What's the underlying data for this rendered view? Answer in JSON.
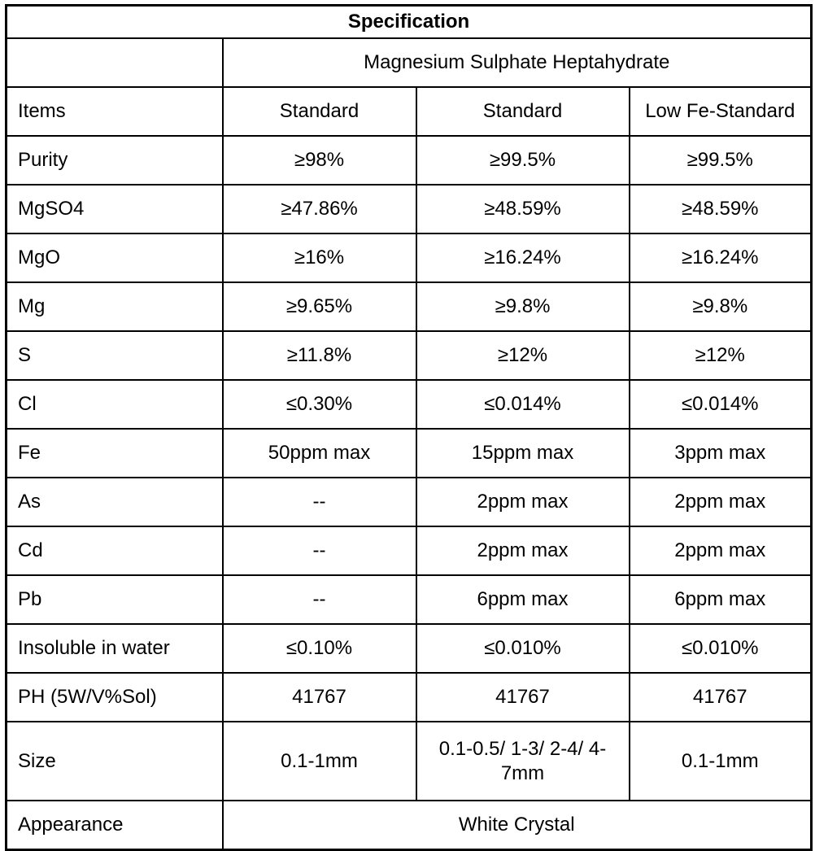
{
  "table": {
    "title": "Specification",
    "product_name": "Magnesium Sulphate Heptahydrate",
    "header": {
      "item_col": "Items",
      "grades": [
        "Standard",
        "Standard",
        "Low Fe-Standard"
      ]
    },
    "rows": [
      {
        "item": "Purity",
        "values": [
          "≥98%",
          "≥99.5%",
          "≥99.5%"
        ]
      },
      {
        "item": "MgSO4",
        "values": [
          "≥47.86%",
          "≥48.59%",
          "≥48.59%"
        ]
      },
      {
        "item": "MgO",
        "values": [
          "≥16%",
          "≥16.24%",
          "≥16.24%"
        ]
      },
      {
        "item": "Mg",
        "values": [
          "≥9.65%",
          "≥9.8%",
          "≥9.8%"
        ]
      },
      {
        "item": "S",
        "values": [
          "≥11.8%",
          "≥12%",
          "≥12%"
        ]
      },
      {
        "item": "Cl",
        "values": [
          "≤0.30%",
          "≤0.014%",
          "≤0.014%"
        ]
      },
      {
        "item": "Fe",
        "values": [
          "50ppm max",
          "15ppm max",
          "3ppm max"
        ]
      },
      {
        "item": "As",
        "values": [
          "--",
          "2ppm max",
          "2ppm max"
        ]
      },
      {
        "item": "Cd",
        "values": [
          "--",
          "2ppm max",
          "2ppm max"
        ]
      },
      {
        "item": "Pb",
        "values": [
          "--",
          "6ppm max",
          "6ppm max"
        ]
      },
      {
        "item": "Insoluble in water",
        "values": [
          "≤0.10%",
          "≤0.010%",
          "≤0.010%"
        ]
      },
      {
        "item": "PH (5W/V%Sol)",
        "values": [
          "41767",
          "41767",
          "41767"
        ]
      },
      {
        "item": "Size",
        "values": [
          "0.1-1mm",
          "0.1-0.5/ 1-3/ 2-4/ 4-7mm",
          "0.1-1mm"
        ]
      }
    ],
    "appearance_row": {
      "item": "Appearance",
      "value": "White Crystal"
    },
    "colors": {
      "border": "#000000",
      "text": "#000000",
      "background": "#ffffff"
    }
  }
}
